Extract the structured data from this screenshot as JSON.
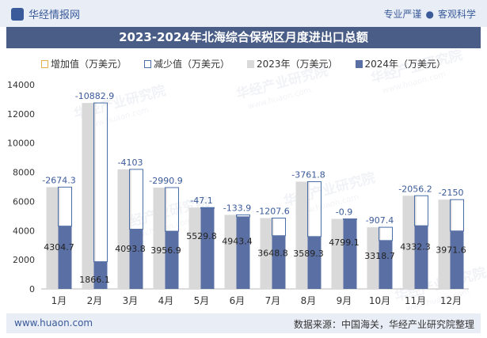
{
  "header": {
    "brand": "华经情报网",
    "slogan_left": "专业严谨",
    "slogan_sep": "●",
    "slogan_right": "客观科学"
  },
  "chart_data": {
    "type": "bar",
    "title": "2023-2024年北海综合保税区月度进出口总额",
    "categories": [
      "1月",
      "2月",
      "3月",
      "4月",
      "5月",
      "6月",
      "7月",
      "8月",
      "9月",
      "10月",
      "11月",
      "12月"
    ],
    "series": [
      {
        "name": "2023年（万美元）",
        "values": [
          6979.0,
          12749.0,
          8196.8,
          6947.8,
          5576.9,
          5077.3,
          4856.4,
          7351.1,
          4800.0,
          4226.1,
          6388.5,
          6121.6
        ]
      },
      {
        "name": "2024年（万美元）",
        "values": [
          4304.7,
          1866.1,
          4093.8,
          3956.9,
          5529.8,
          4943.4,
          3648.8,
          3589.3,
          4799.1,
          3318.7,
          4332.3,
          3971.6
        ]
      }
    ],
    "change_values": [
      -2674.3,
      -10882.9,
      -4103,
      -2990.9,
      -47.1,
      -133.9,
      -1207.6,
      -3761.8,
      -0.9,
      -907.4,
      -2056.2,
      -2150
    ],
    "change_labels": [
      "-2674.3",
      "-10882.9",
      "-4103",
      "-2990.9",
      "-47.1",
      "-133.9",
      "-1207.6",
      "-3761.8",
      "-0.9",
      "-907.4",
      "-2056.2",
      "-2150"
    ],
    "value_labels_2024": [
      "4304.7",
      "1866.1",
      "4093.8",
      "3956.9",
      "5529.8",
      "4943.4",
      "3648.8",
      "3589.3",
      "4799.1",
      "3318.7",
      "4332.3",
      "3971.6"
    ],
    "legend": [
      "增加值（万美元）",
      "减少值（万美元）",
      "2023年（万美元）",
      "2024年（万美元）"
    ],
    "ylim": [
      0,
      14000
    ],
    "yticks": [
      "0",
      "2000",
      "4000",
      "6000",
      "8000",
      "10000",
      "12000",
      "14000"
    ],
    "legend_position": "top",
    "colors": {
      "bar2023": "#d9d9d9",
      "bar2024": "#5a6fa3",
      "decrease": "#4a6ea8",
      "increase": "#e2b04a",
      "change_label": "#3a5a9a"
    }
  },
  "watermark": {
    "text": "华经产业研究院",
    "url": "www.huaon.com"
  },
  "footer": {
    "website": "www.huaon.com",
    "source": "数据来源：中国海关，华经产业研究院整理"
  }
}
